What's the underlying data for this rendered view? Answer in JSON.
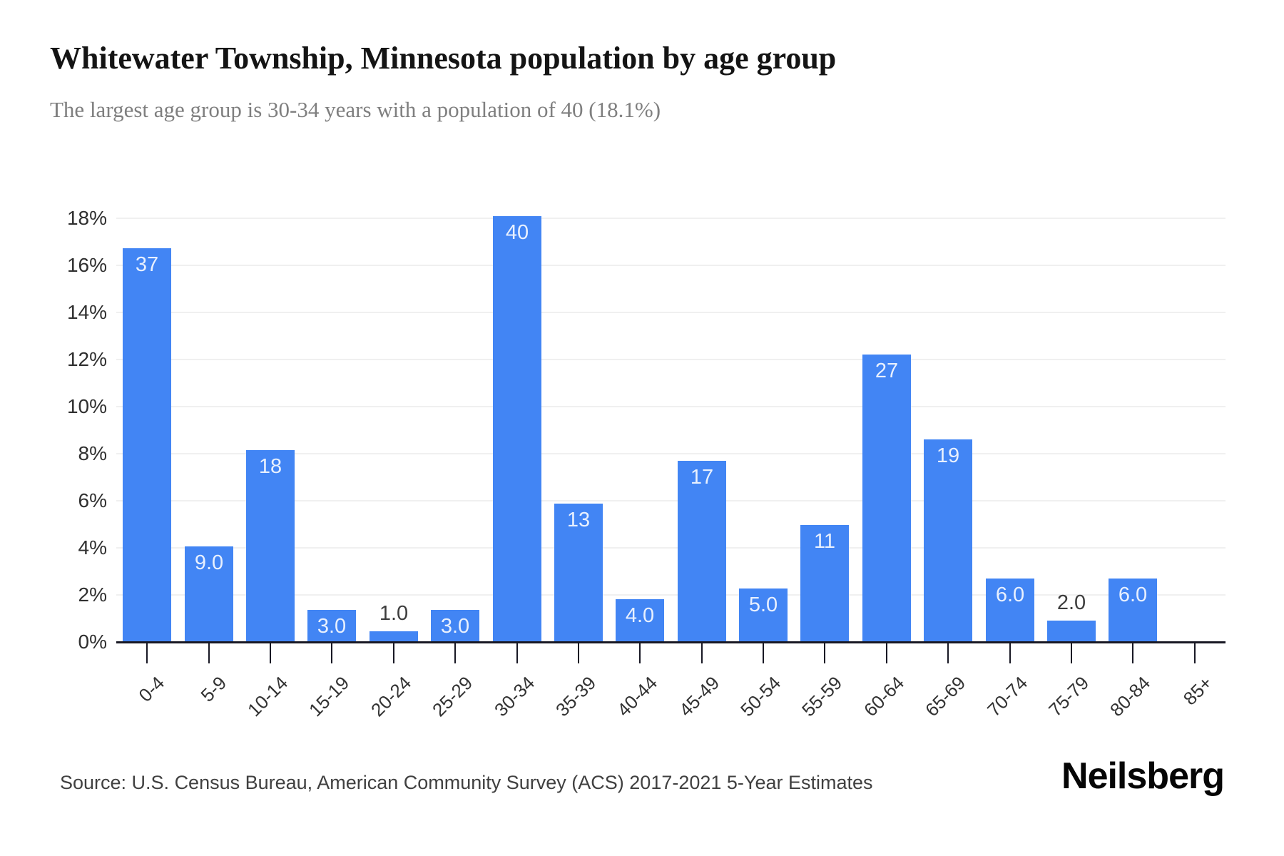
{
  "page": {
    "title": "Whitewater Township, Minnesota population by age group",
    "subtitle": "The largest age group is 30-34 years with a population of 40 (18.1%)",
    "source": "Source: U.S. Census Bureau, American Community Survey (ACS) 2017-2021 5-Year Estimates",
    "brand": "Neilsberg"
  },
  "chart_data": {
    "type": "bar",
    "title": "Whitewater Township, Minnesota population by age group",
    "subtitle": "The largest age group is 30-34 years with a population of 40 (18.1%)",
    "categories": [
      "0-4",
      "5-9",
      "10-14",
      "15-19",
      "20-24",
      "25-29",
      "30-34",
      "35-39",
      "40-44",
      "45-49",
      "50-54",
      "55-59",
      "60-64",
      "65-69",
      "70-74",
      "75-79",
      "80-84",
      "85+"
    ],
    "values": [
      37,
      9,
      18,
      3,
      1,
      3,
      40,
      13,
      4,
      17,
      5,
      11,
      27,
      19,
      6,
      2,
      6,
      0
    ],
    "bar_labels": [
      "37",
      "9.0",
      "18",
      "3.0",
      "1.0",
      "3.0",
      "40",
      "13",
      "4.0",
      "17",
      "5.0",
      "11",
      "27",
      "19",
      "6.0",
      "2.0",
      "6.0",
      ""
    ],
    "label_placement": [
      "inside",
      "inside",
      "inside",
      "inside",
      "outside",
      "inside",
      "inside",
      "inside",
      "inside",
      "inside",
      "inside",
      "inside",
      "inside",
      "inside",
      "inside",
      "outside",
      "inside",
      "none"
    ],
    "percentages": [
      16.74,
      4.07,
      8.14,
      1.36,
      0.45,
      1.36,
      18.1,
      5.88,
      1.81,
      7.69,
      2.26,
      4.98,
      12.22,
      8.6,
      2.71,
      0.9,
      2.71,
      0
    ],
    "xlabel": "",
    "ylabel": "",
    "y_ticks": [
      "0%",
      "2%",
      "4%",
      "6%",
      "8%",
      "10%",
      "12%",
      "14%",
      "16%",
      "18%"
    ],
    "ylim": [
      0,
      18
    ],
    "grid": "horizontal",
    "legend": "none",
    "bar_color": "#4285f4",
    "inside_label_color": "rgba(255,255,255,0.88)",
    "outside_label_color": "#3d3d3d",
    "source": "Source: U.S. Census Bureau, American Community Survey (ACS) 2017-2021 5-Year Estimates",
    "brand": "Neilsberg"
  }
}
